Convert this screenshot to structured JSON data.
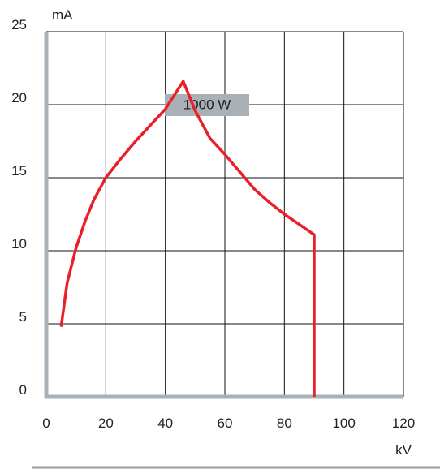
{
  "chart_data": {
    "type": "line",
    "title": "",
    "xlabel": "kV",
    "ylabel": "mA",
    "xlim": [
      0,
      120
    ],
    "ylim": [
      0,
      25
    ],
    "x_ticks": [
      0,
      20,
      40,
      60,
      80,
      100,
      120
    ],
    "y_ticks": [
      0,
      5,
      10,
      15,
      20,
      25
    ],
    "grid": true,
    "legend": "none",
    "annotation": {
      "text": "1000 W",
      "x": 54,
      "y": 20
    },
    "colors": {
      "line": "#e8202a",
      "grid": "#111111",
      "axis": "#a9b0b6",
      "annotation_bg": "#a9b0b6",
      "baseline": "#9a9a9a"
    },
    "series": [
      {
        "points": [
          [
            5,
            4.8
          ],
          [
            7,
            7.8
          ],
          [
            10,
            10.2
          ],
          [
            13,
            12
          ],
          [
            16,
            13.5
          ],
          [
            20,
            15
          ],
          [
            25,
            16.3
          ],
          [
            30,
            17.5
          ],
          [
            35,
            18.6
          ],
          [
            40,
            19.7
          ],
          [
            46,
            21.6
          ],
          [
            50,
            19.6
          ],
          [
            55,
            17.7
          ],
          [
            60,
            16.6
          ],
          [
            65,
            15.4
          ],
          [
            70,
            14.2
          ],
          [
            75,
            13.3
          ],
          [
            80,
            12.5
          ],
          [
            85,
            11.8
          ],
          [
            90,
            11.1
          ],
          [
            90,
            0
          ]
        ]
      }
    ]
  }
}
